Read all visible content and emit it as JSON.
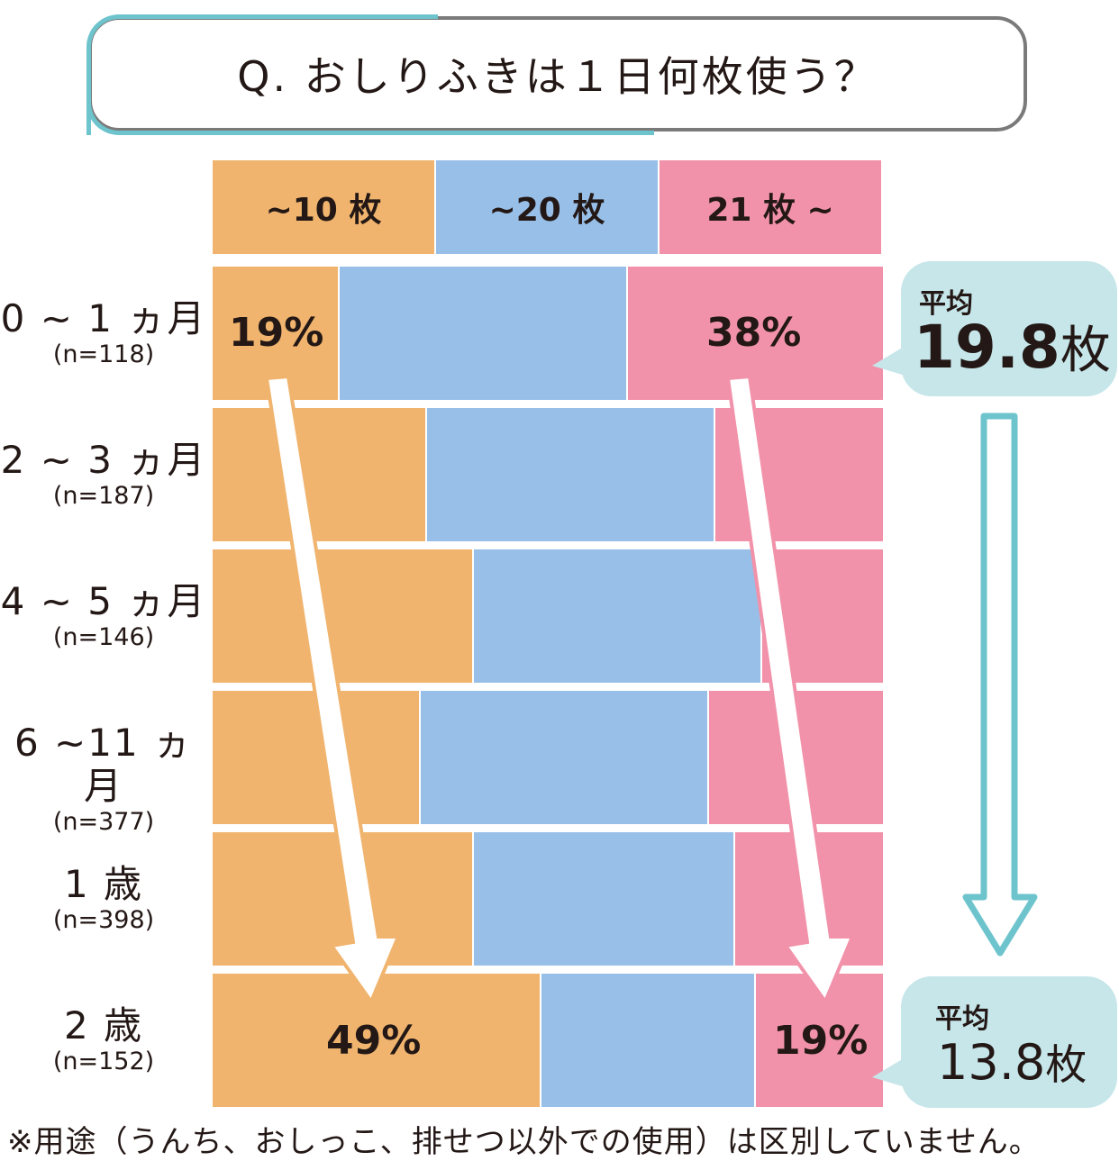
{
  "title": "Q. おしりふきは１日何枚使う？",
  "chart_data": {
    "type": "bar",
    "stacked": true,
    "orientation": "horizontal",
    "categories_header": [
      "~10 枚",
      "~20 枚",
      "21 枚 ~"
    ],
    "rows": [
      {
        "age": "0 ~ 1 ヵ月",
        "n": "(n=118)",
        "values": [
          19,
          43,
          38
        ]
      },
      {
        "age": "2 ~ 3 ヵ月",
        "n": "(n=187)",
        "values": [
          32,
          43,
          25
        ]
      },
      {
        "age": "4 ~ 5 ヵ月",
        "n": "(n=146)",
        "values": [
          39,
          43,
          18
        ]
      },
      {
        "age": "6 ~11 ヵ月",
        "n": "(n=377)",
        "values": [
          31,
          43,
          26
        ]
      },
      {
        "age": "1 歳",
        "n": "(n=398)",
        "values": [
          39,
          39,
          22
        ]
      },
      {
        "age": "2 歳",
        "n": "(n=152)",
        "values": [
          49,
          32,
          19
        ]
      }
    ],
    "data_labels": [
      {
        "row": 0,
        "series": 0,
        "text": "19%"
      },
      {
        "row": 0,
        "series": 2,
        "text": "38%"
      },
      {
        "row": 5,
        "series": 0,
        "text": "49%"
      },
      {
        "row": 5,
        "series": 2,
        "text": "19%"
      }
    ],
    "colors": [
      "#f0b46e",
      "#98bfe8",
      "#f192aa"
    ],
    "xlim": [
      0,
      100
    ]
  },
  "averages": [
    {
      "label": "平均",
      "value": "19.8",
      "unit": "枚"
    },
    {
      "label": "平均",
      "value": "13.8",
      "unit": "枚"
    }
  ],
  "footnote": "※用途（うんち、おしっこ、排せつ以外での使用）は区別していません。",
  "colors": {
    "accent": "#6ec4cd",
    "bubble": "#c6e6ea",
    "arrow_teal": "#6ec4cd"
  }
}
